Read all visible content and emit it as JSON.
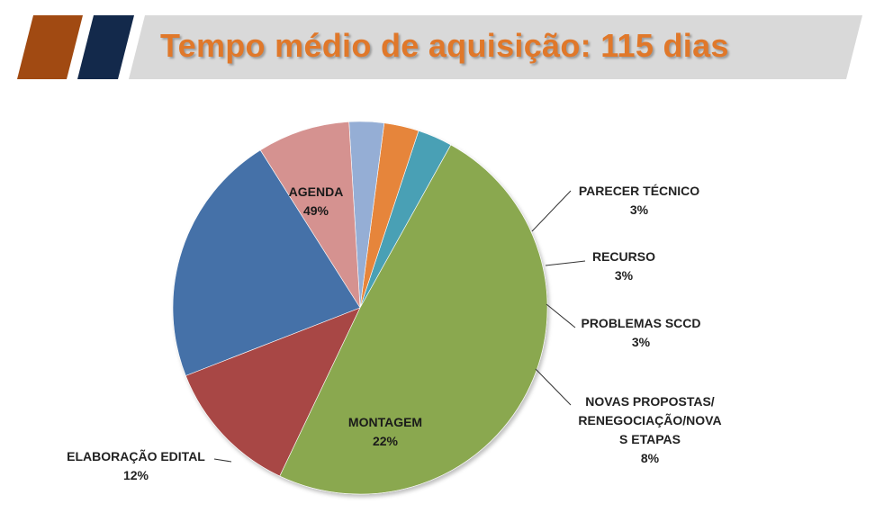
{
  "header": {
    "title": "Tempo médio de aquisição: 115 dias",
    "accent_colors": {
      "orange_block": "#a14a12",
      "navy_block": "#13294b",
      "banner": "#d9d9d9",
      "title_color": "#e0782a"
    }
  },
  "chart_data": {
    "type": "pie",
    "title": "Tempo médio de aquisição: 115 dias",
    "unit": "%",
    "legend": "none",
    "slices": [
      {
        "label": "PARECER TÉCNICO",
        "label_lines": [
          "PARECER TÉCNICO"
        ],
        "value": 3,
        "value_label": "3%",
        "color": "#4aa0b5"
      },
      {
        "label": "RECURSO",
        "label_lines": [
          "RECURSO"
        ],
        "value": 3,
        "value_label": "3%",
        "color": "#e6853b"
      },
      {
        "label": "PROBLEMAS SCCD",
        "label_lines": [
          "PROBLEMAS SCCD"
        ],
        "value": 3,
        "value_label": "3%",
        "color": "#95aed5"
      },
      {
        "label": "NOVAS PROPOSTAS/ RENEGOCIAÇÃO/NOVAS ETAPAS",
        "label_lines": [
          "NOVAS PROPOSTAS/",
          "RENEGOCIAÇÃO/NOVA",
          "S ETAPAS"
        ],
        "value": 8,
        "value_label": "8%",
        "color": "#d59290"
      },
      {
        "label": "MONTAGEM",
        "label_lines": [
          "MONTAGEM"
        ],
        "value": 22,
        "value_label": "22%",
        "color": "#4571a8"
      },
      {
        "label": "ELABORAÇÃO EDITAL",
        "label_lines": [
          "ELABORAÇÃO EDITAL"
        ],
        "value": 12,
        "value_label": "12%",
        "color": "#a84745"
      },
      {
        "label": "AGENDA",
        "label_lines": [
          "AGENDA"
        ],
        "value": 49,
        "value_label": "49%",
        "color": "#8aa84f"
      }
    ]
  }
}
